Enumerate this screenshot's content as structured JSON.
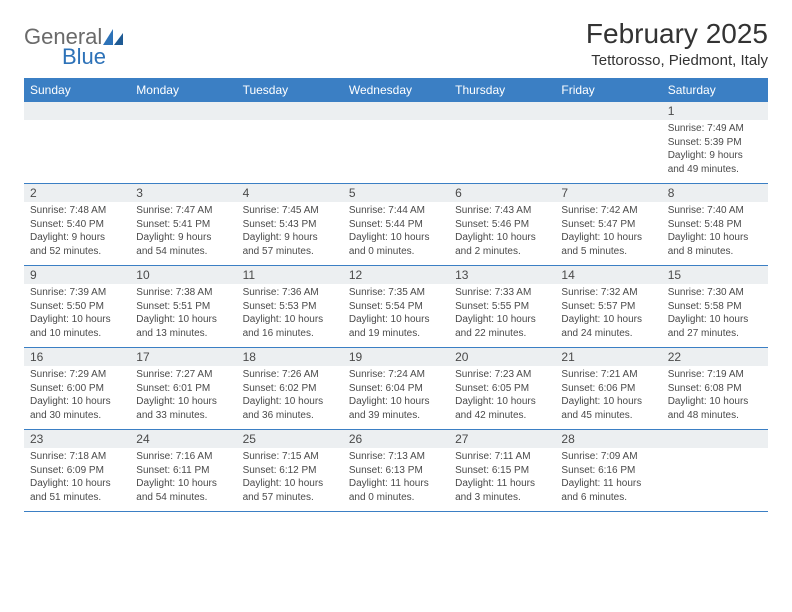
{
  "logo": {
    "main": "General",
    "sub": "Blue"
  },
  "title": "February 2025",
  "location": "Tettorosso, Piedmont, Italy",
  "colors": {
    "header_bg": "#3b7fc4",
    "header_text": "#ffffff",
    "daynum_bg": "#eceff1",
    "border": "#3b7fc4",
    "logo_main": "#6a6a6a",
    "logo_sub": "#2d72b8"
  },
  "weekdays": [
    "Sunday",
    "Monday",
    "Tuesday",
    "Wednesday",
    "Thursday",
    "Friday",
    "Saturday"
  ],
  "weeks": [
    [
      null,
      null,
      null,
      null,
      null,
      null,
      {
        "n": "1",
        "sr": "Sunrise: 7:49 AM",
        "ss": "Sunset: 5:39 PM",
        "d1": "Daylight: 9 hours",
        "d2": "and 49 minutes."
      }
    ],
    [
      {
        "n": "2",
        "sr": "Sunrise: 7:48 AM",
        "ss": "Sunset: 5:40 PM",
        "d1": "Daylight: 9 hours",
        "d2": "and 52 minutes."
      },
      {
        "n": "3",
        "sr": "Sunrise: 7:47 AM",
        "ss": "Sunset: 5:41 PM",
        "d1": "Daylight: 9 hours",
        "d2": "and 54 minutes."
      },
      {
        "n": "4",
        "sr": "Sunrise: 7:45 AM",
        "ss": "Sunset: 5:43 PM",
        "d1": "Daylight: 9 hours",
        "d2": "and 57 minutes."
      },
      {
        "n": "5",
        "sr": "Sunrise: 7:44 AM",
        "ss": "Sunset: 5:44 PM",
        "d1": "Daylight: 10 hours",
        "d2": "and 0 minutes."
      },
      {
        "n": "6",
        "sr": "Sunrise: 7:43 AM",
        "ss": "Sunset: 5:46 PM",
        "d1": "Daylight: 10 hours",
        "d2": "and 2 minutes."
      },
      {
        "n": "7",
        "sr": "Sunrise: 7:42 AM",
        "ss": "Sunset: 5:47 PM",
        "d1": "Daylight: 10 hours",
        "d2": "and 5 minutes."
      },
      {
        "n": "8",
        "sr": "Sunrise: 7:40 AM",
        "ss": "Sunset: 5:48 PM",
        "d1": "Daylight: 10 hours",
        "d2": "and 8 minutes."
      }
    ],
    [
      {
        "n": "9",
        "sr": "Sunrise: 7:39 AM",
        "ss": "Sunset: 5:50 PM",
        "d1": "Daylight: 10 hours",
        "d2": "and 10 minutes."
      },
      {
        "n": "10",
        "sr": "Sunrise: 7:38 AM",
        "ss": "Sunset: 5:51 PM",
        "d1": "Daylight: 10 hours",
        "d2": "and 13 minutes."
      },
      {
        "n": "11",
        "sr": "Sunrise: 7:36 AM",
        "ss": "Sunset: 5:53 PM",
        "d1": "Daylight: 10 hours",
        "d2": "and 16 minutes."
      },
      {
        "n": "12",
        "sr": "Sunrise: 7:35 AM",
        "ss": "Sunset: 5:54 PM",
        "d1": "Daylight: 10 hours",
        "d2": "and 19 minutes."
      },
      {
        "n": "13",
        "sr": "Sunrise: 7:33 AM",
        "ss": "Sunset: 5:55 PM",
        "d1": "Daylight: 10 hours",
        "d2": "and 22 minutes."
      },
      {
        "n": "14",
        "sr": "Sunrise: 7:32 AM",
        "ss": "Sunset: 5:57 PM",
        "d1": "Daylight: 10 hours",
        "d2": "and 24 minutes."
      },
      {
        "n": "15",
        "sr": "Sunrise: 7:30 AM",
        "ss": "Sunset: 5:58 PM",
        "d1": "Daylight: 10 hours",
        "d2": "and 27 minutes."
      }
    ],
    [
      {
        "n": "16",
        "sr": "Sunrise: 7:29 AM",
        "ss": "Sunset: 6:00 PM",
        "d1": "Daylight: 10 hours",
        "d2": "and 30 minutes."
      },
      {
        "n": "17",
        "sr": "Sunrise: 7:27 AM",
        "ss": "Sunset: 6:01 PM",
        "d1": "Daylight: 10 hours",
        "d2": "and 33 minutes."
      },
      {
        "n": "18",
        "sr": "Sunrise: 7:26 AM",
        "ss": "Sunset: 6:02 PM",
        "d1": "Daylight: 10 hours",
        "d2": "and 36 minutes."
      },
      {
        "n": "19",
        "sr": "Sunrise: 7:24 AM",
        "ss": "Sunset: 6:04 PM",
        "d1": "Daylight: 10 hours",
        "d2": "and 39 minutes."
      },
      {
        "n": "20",
        "sr": "Sunrise: 7:23 AM",
        "ss": "Sunset: 6:05 PM",
        "d1": "Daylight: 10 hours",
        "d2": "and 42 minutes."
      },
      {
        "n": "21",
        "sr": "Sunrise: 7:21 AM",
        "ss": "Sunset: 6:06 PM",
        "d1": "Daylight: 10 hours",
        "d2": "and 45 minutes."
      },
      {
        "n": "22",
        "sr": "Sunrise: 7:19 AM",
        "ss": "Sunset: 6:08 PM",
        "d1": "Daylight: 10 hours",
        "d2": "and 48 minutes."
      }
    ],
    [
      {
        "n": "23",
        "sr": "Sunrise: 7:18 AM",
        "ss": "Sunset: 6:09 PM",
        "d1": "Daylight: 10 hours",
        "d2": "and 51 minutes."
      },
      {
        "n": "24",
        "sr": "Sunrise: 7:16 AM",
        "ss": "Sunset: 6:11 PM",
        "d1": "Daylight: 10 hours",
        "d2": "and 54 minutes."
      },
      {
        "n": "25",
        "sr": "Sunrise: 7:15 AM",
        "ss": "Sunset: 6:12 PM",
        "d1": "Daylight: 10 hours",
        "d2": "and 57 minutes."
      },
      {
        "n": "26",
        "sr": "Sunrise: 7:13 AM",
        "ss": "Sunset: 6:13 PM",
        "d1": "Daylight: 11 hours",
        "d2": "and 0 minutes."
      },
      {
        "n": "27",
        "sr": "Sunrise: 7:11 AM",
        "ss": "Sunset: 6:15 PM",
        "d1": "Daylight: 11 hours",
        "d2": "and 3 minutes."
      },
      {
        "n": "28",
        "sr": "Sunrise: 7:09 AM",
        "ss": "Sunset: 6:16 PM",
        "d1": "Daylight: 11 hours",
        "d2": "and 6 minutes."
      },
      null
    ]
  ]
}
